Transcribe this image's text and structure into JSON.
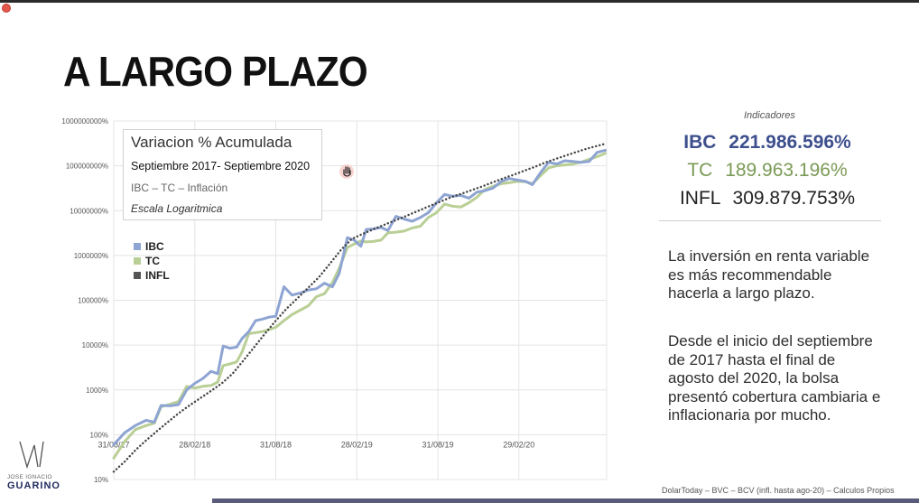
{
  "slide": {
    "title": "A LARGO PLAZO",
    "source": "DolarToday – BVC – BCV (infl. hasta ago-20) – Calculos Propios"
  },
  "chart_box": {
    "line1": "Variacion % Acumulada",
    "line2": "Septiembre 2017- Septiembre 2020",
    "line3": "IBC – TC – Inflación",
    "line4": "Escala Logaritmica"
  },
  "indicators": {
    "title": "Indicadores",
    "rows": [
      {
        "label": "IBC",
        "value": "221.986.596%",
        "color": "#3d4f8c"
      },
      {
        "label": "TC",
        "value": "189.963.196%",
        "color": "#7a9a55"
      },
      {
        "label": "INFL",
        "value": "309.879.753%",
        "color": "#222222"
      }
    ]
  },
  "text": {
    "p1": "La inversión en renta variable es más recommendable hacerla a largo plazo.",
    "p2": "Desde el inicio del septiembre de 2017 hasta el final de agosto del 2020, la bolsa presentó cobertura cambiaria e inflacionaria por mucho."
  },
  "logo": {
    "name_top": "JOSE IGNACIO",
    "name_bottom": "GUARINO"
  },
  "chart_data": {
    "type": "line",
    "yscale": "log",
    "ylim": [
      10,
      1000000000
    ],
    "y_ticks": [
      {
        "value": 10,
        "label": "10%"
      },
      {
        "value": 100,
        "label": "100%"
      },
      {
        "value": 1000,
        "label": "1000%"
      },
      {
        "value": 10000,
        "label": "10000%"
      },
      {
        "value": 100000,
        "label": "100000%"
      },
      {
        "value": 1000000,
        "label": "1000000%"
      },
      {
        "value": 10000000,
        "label": "10000000%"
      },
      {
        "value": 100000000,
        "label": "100000000%"
      },
      {
        "value": 1000000000,
        "label": "1000000000%"
      }
    ],
    "x_ticks": [
      "31/08/17",
      "28/02/18",
      "31/08/18",
      "28/02/19",
      "31/08/19",
      "29/02/20"
    ],
    "x_tick_months": [
      0,
      6,
      12,
      18,
      24,
      30
    ],
    "xlim_months": [
      0,
      36.5
    ],
    "series": [
      {
        "name": "IBC",
        "color": "#8ea4d2",
        "style": "solid",
        "points": [
          [
            0,
            60
          ],
          [
            0.8,
            110
          ],
          [
            1.6,
            160
          ],
          [
            2.4,
            210
          ],
          [
            3,
            190
          ],
          [
            3.5,
            450
          ],
          [
            4.2,
            440
          ],
          [
            4.8,
            470
          ],
          [
            5.4,
            1000
          ],
          [
            6,
            1400
          ],
          [
            6.6,
            1800
          ],
          [
            7.2,
            2600
          ],
          [
            7.7,
            2300
          ],
          [
            8.1,
            9500
          ],
          [
            8.6,
            8500
          ],
          [
            9.1,
            9000
          ],
          [
            9.5,
            14000
          ],
          [
            10,
            20000
          ],
          [
            10.5,
            35000
          ],
          [
            11,
            38000
          ],
          [
            11.5,
            42000
          ],
          [
            12,
            44000
          ],
          [
            12.6,
            200000
          ],
          [
            13.2,
            130000
          ],
          [
            13.8,
            145000
          ],
          [
            14.4,
            170000
          ],
          [
            15,
            180000
          ],
          [
            15.6,
            240000
          ],
          [
            16.2,
            200000
          ],
          [
            16.7,
            400000
          ],
          [
            17.3,
            2500000
          ],
          [
            17.8,
            2200000
          ],
          [
            18.3,
            1600000
          ],
          [
            18.7,
            3800000
          ],
          [
            19.2,
            3900000
          ],
          [
            19.8,
            4200000
          ],
          [
            20.3,
            3600000
          ],
          [
            20.9,
            7500000
          ],
          [
            21.5,
            6500000
          ],
          [
            22.1,
            5800000
          ],
          [
            22.7,
            7000000
          ],
          [
            23.3,
            9000000
          ],
          [
            23.9,
            15000000
          ],
          [
            24.5,
            23000000
          ],
          [
            25.1,
            21000000
          ],
          [
            25.7,
            22000000
          ],
          [
            26.3,
            19000000
          ],
          [
            26.9,
            26000000
          ],
          [
            27.5,
            28000000
          ],
          [
            28.1,
            32000000
          ],
          [
            28.7,
            45000000
          ],
          [
            29.3,
            52000000
          ],
          [
            29.9,
            48000000
          ],
          [
            30.5,
            45000000
          ],
          [
            31,
            38000000
          ],
          [
            31.6,
            70000000
          ],
          [
            32.2,
            120000000
          ],
          [
            32.8,
            110000000
          ],
          [
            33.4,
            130000000
          ],
          [
            34,
            125000000
          ],
          [
            34.6,
            120000000
          ],
          [
            35.2,
            125000000
          ],
          [
            35.8,
            200000000
          ],
          [
            36.4,
            221986596
          ]
        ]
      },
      {
        "name": "TC",
        "color": "#b9cf95",
        "style": "solid",
        "points": [
          [
            0,
            30
          ],
          [
            0.8,
            70
          ],
          [
            1.6,
            130
          ],
          [
            2.4,
            160
          ],
          [
            3,
            180
          ],
          [
            3.5,
            420
          ],
          [
            4.2,
            480
          ],
          [
            4.8,
            550
          ],
          [
            5.4,
            1200
          ],
          [
            6,
            1100
          ],
          [
            6.6,
            1200
          ],
          [
            7.2,
            1250
          ],
          [
            7.7,
            1500
          ],
          [
            8.1,
            3500
          ],
          [
            8.6,
            3800
          ],
          [
            9.1,
            4200
          ],
          [
            9.5,
            7000
          ],
          [
            10,
            18000
          ],
          [
            10.5,
            19000
          ],
          [
            11,
            20000
          ],
          [
            11.5,
            22000
          ],
          [
            12,
            25000
          ],
          [
            12.6,
            35000
          ],
          [
            13.2,
            48000
          ],
          [
            13.8,
            60000
          ],
          [
            14.4,
            75000
          ],
          [
            15,
            120000
          ],
          [
            15.6,
            140000
          ],
          [
            16.2,
            250000
          ],
          [
            16.7,
            520000
          ],
          [
            17.3,
            1500000
          ],
          [
            17.8,
            1800000
          ],
          [
            18.3,
            2100000
          ],
          [
            18.7,
            2000000
          ],
          [
            19.2,
            2050000
          ],
          [
            19.8,
            2200000
          ],
          [
            20.3,
            3200000
          ],
          [
            20.9,
            3300000
          ],
          [
            21.5,
            3500000
          ],
          [
            22.1,
            4100000
          ],
          [
            22.7,
            4500000
          ],
          [
            23.3,
            7000000
          ],
          [
            23.9,
            9000000
          ],
          [
            24.5,
            14000000
          ],
          [
            25.1,
            12500000
          ],
          [
            25.7,
            12000000
          ],
          [
            26.3,
            15000000
          ],
          [
            26.9,
            20000000
          ],
          [
            27.5,
            30000000
          ],
          [
            28.1,
            35000000
          ],
          [
            28.7,
            40000000
          ],
          [
            29.3,
            42000000
          ],
          [
            29.9,
            45000000
          ],
          [
            30.5,
            44000000
          ],
          [
            31,
            40000000
          ],
          [
            31.6,
            60000000
          ],
          [
            32.2,
            90000000
          ],
          [
            32.8,
            100000000
          ],
          [
            33.4,
            105000000
          ],
          [
            34,
            110000000
          ],
          [
            34.6,
            120000000
          ],
          [
            35.2,
            140000000
          ],
          [
            35.8,
            160000000
          ],
          [
            36.4,
            189963196
          ]
        ]
      },
      {
        "name": "INFL",
        "color": "#444444",
        "style": "dotted",
        "points": [
          [
            0,
            15
          ],
          [
            0.8,
            25
          ],
          [
            1.6,
            45
          ],
          [
            2.4,
            75
          ],
          [
            3.2,
            120
          ],
          [
            4,
            190
          ],
          [
            4.8,
            300
          ],
          [
            5.6,
            450
          ],
          [
            6.4,
            650
          ],
          [
            7.2,
            950
          ],
          [
            8,
            1400
          ],
          [
            8.8,
            2300
          ],
          [
            9.6,
            4500
          ],
          [
            10.4,
            9000
          ],
          [
            11.2,
            18000
          ],
          [
            12,
            35000
          ],
          [
            12.8,
            65000
          ],
          [
            13.6,
            110000
          ],
          [
            14.4,
            190000
          ],
          [
            15.2,
            330000
          ],
          [
            16,
            650000
          ],
          [
            16.8,
            1300000
          ],
          [
            17.6,
            2300000
          ],
          [
            18.4,
            3000000
          ],
          [
            19.2,
            3800000
          ],
          [
            20,
            4800000
          ],
          [
            20.8,
            6000000
          ],
          [
            21.6,
            7500000
          ],
          [
            22.4,
            9500000
          ],
          [
            23.2,
            12000000
          ],
          [
            24,
            15000000
          ],
          [
            24.8,
            19000000
          ],
          [
            25.6,
            23000000
          ],
          [
            26.4,
            28000000
          ],
          [
            27.2,
            34000000
          ],
          [
            28,
            42000000
          ],
          [
            28.8,
            52000000
          ],
          [
            29.6,
            63000000
          ],
          [
            30.4,
            78000000
          ],
          [
            31.2,
            95000000
          ],
          [
            32,
            120000000
          ],
          [
            32.8,
            145000000
          ],
          [
            33.6,
            175000000
          ],
          [
            34.4,
            210000000
          ],
          [
            35.2,
            250000000
          ],
          [
            36.4,
            309879753
          ]
        ]
      }
    ]
  }
}
